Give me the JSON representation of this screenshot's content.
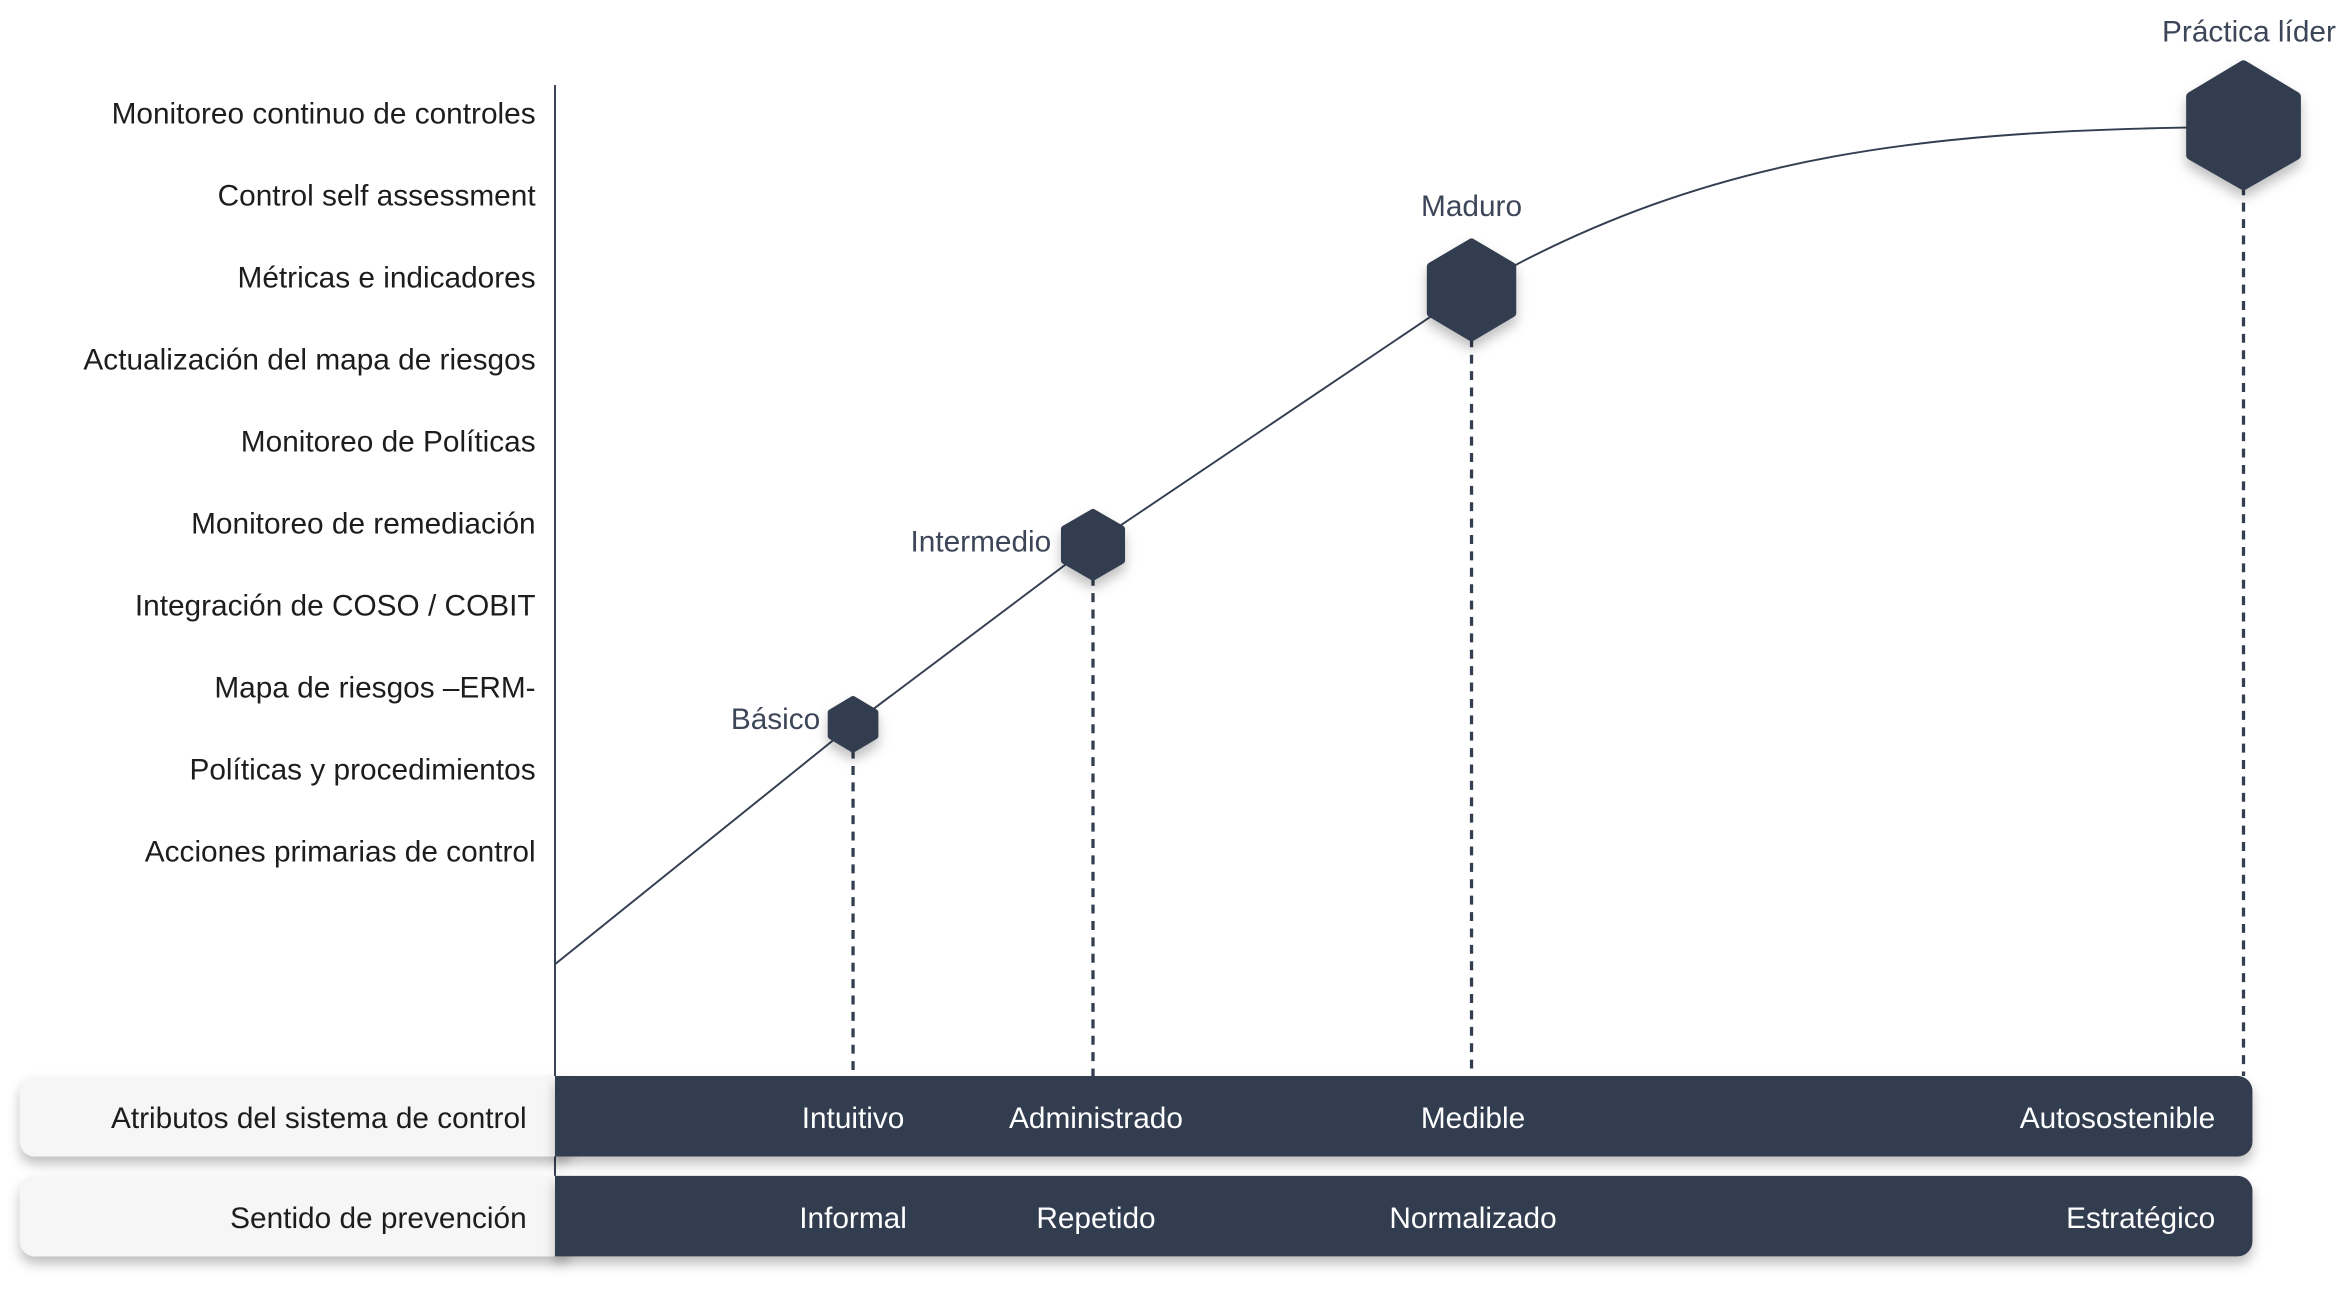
{
  "colors": {
    "dark": "#333e50",
    "panel": "#f6f6f6",
    "line": "#333e50"
  },
  "y_labels": [
    "Monitoreo continuo de controles",
    "Control self assessment",
    "Métricas e indicadores",
    "Actualización del mapa de riesgos",
    "Monitoreo de Políticas",
    "Monitoreo de remediación",
    "Integración de COSO / COBIT",
    "Mapa de riesgos –ERM-",
    "Políticas y procedimientos",
    "Acciones primarias de control"
  ],
  "stages": [
    {
      "label": "Básico",
      "icon": "hexagon-icon"
    },
    {
      "label": "Intermedio",
      "icon": "hexagon-icon"
    },
    {
      "label": "Maduro",
      "icon": "hexagon-icon"
    },
    {
      "label": "Práctica líder",
      "icon": "hexagon-icon"
    }
  ],
  "rows": [
    {
      "label": "Atributos del sistema de control",
      "values": [
        "Intuitivo",
        "Administrado",
        "Medible",
        "Autosostenible"
      ]
    },
    {
      "label": "Sentido de prevención",
      "values": [
        "Informal",
        "Repetido",
        "Normalizado",
        "Estratégico"
      ]
    }
  ]
}
